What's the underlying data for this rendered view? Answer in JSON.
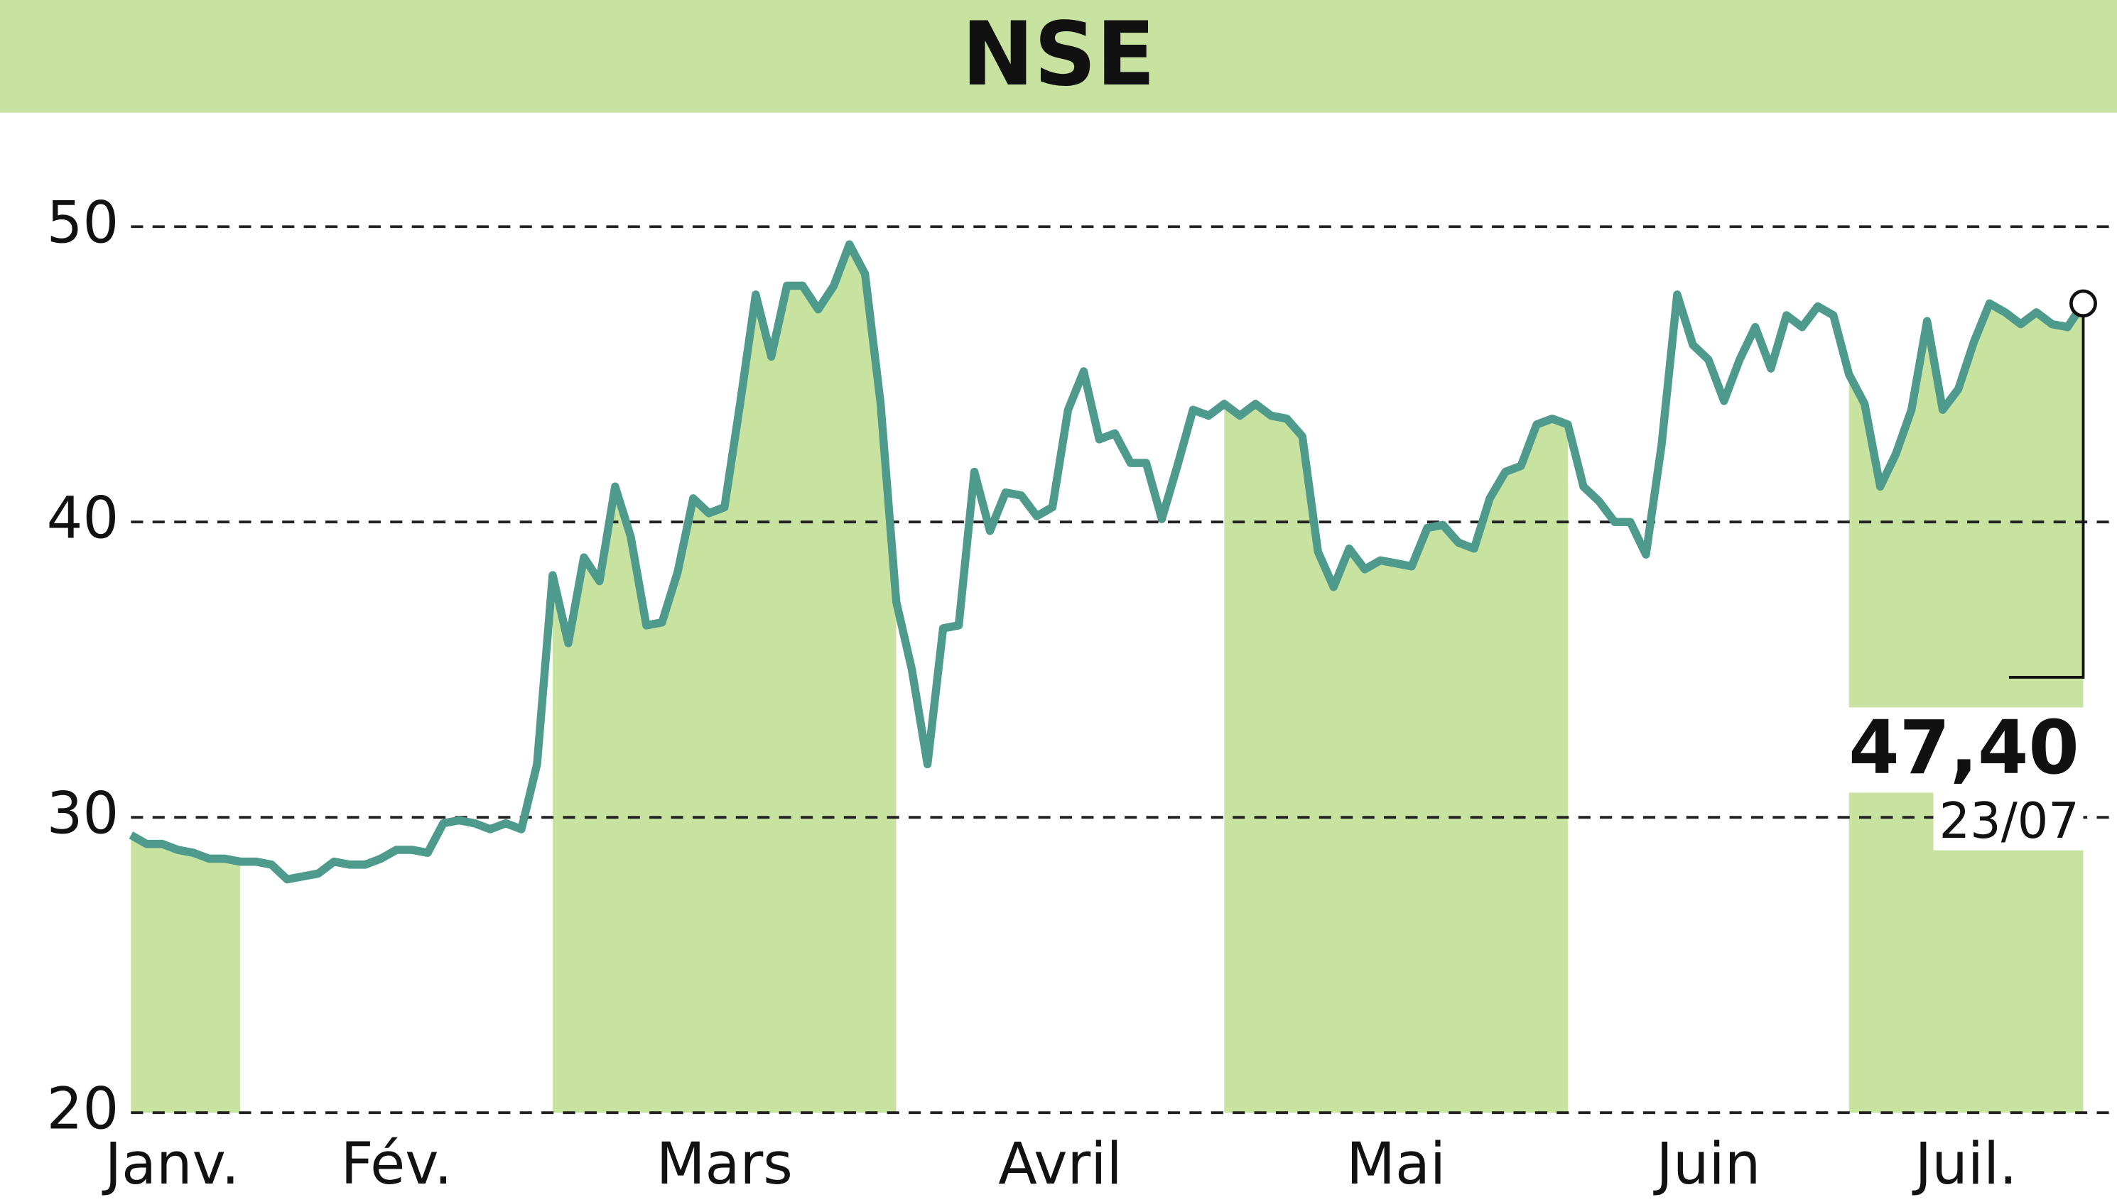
{
  "chart_data": {
    "type": "line",
    "title": "NSE",
    "ylim": [
      20,
      50
    ],
    "yticks": [
      20,
      30,
      40,
      50
    ],
    "grid": true,
    "color": "#4e9a8c",
    "band_color": "#c8e3a0",
    "categories": [
      "Janv.",
      null,
      null,
      null,
      null,
      null,
      null,
      "Fév.",
      null,
      null,
      null,
      null,
      null,
      null,
      null,
      null,
      null,
      null,
      null,
      null,
      null,
      null,
      null,
      null,
      null,
      null,
      null,
      "Mars",
      null,
      null,
      null,
      null,
      null,
      null,
      null,
      null,
      null,
      null,
      null,
      null,
      null,
      null,
      null,
      null,
      null,
      null,
      null,
      null,
      null,
      "Avril",
      null,
      null,
      null,
      null,
      null,
      null,
      null,
      null,
      null,
      null,
      null,
      null,
      null,
      null,
      null,
      null,
      null,
      null,
      null,
      null,
      "Mai",
      null,
      null,
      null,
      null,
      null,
      null,
      null,
      null,
      null,
      null,
      null,
      null,
      null,
      null,
      null,
      null,
      null,
      null,
      null,
      null,
      null,
      "Juin",
      null,
      null,
      null,
      null,
      null,
      null,
      null,
      null,
      null,
      null,
      null,
      null,
      null,
      null,
      null,
      null,
      null,
      "Juil.",
      null,
      null,
      null,
      null,
      null,
      null,
      null,
      null,
      null,
      null,
      null,
      null,
      null,
      null,
      null
    ],
    "values": [
      29.4,
      29.1,
      29.1,
      28.9,
      28.8,
      28.6,
      28.6,
      28.5,
      28.5,
      28.4,
      27.9,
      28.0,
      28.1,
      28.5,
      28.4,
      28.4,
      28.6,
      28.9,
      28.9,
      28.8,
      29.8,
      29.9,
      29.8,
      29.6,
      29.8,
      29.6,
      31.8,
      38.2,
      35.9,
      38.8,
      38.0,
      41.2,
      39.5,
      36.5,
      36.6,
      38.3,
      40.8,
      40.3,
      40.5,
      44.0,
      47.7,
      45.6,
      48.0,
      48.0,
      47.2,
      48.0,
      49.4,
      48.4,
      44.0,
      37.3,
      35.0,
      31.8,
      36.4,
      36.5,
      41.7,
      39.7,
      41.0,
      40.9,
      40.2,
      40.5,
      43.8,
      45.1,
      42.8,
      43.0,
      42.0,
      42.0,
      40.1,
      41.9,
      43.8,
      43.6,
      44.0,
      43.6,
      44.0,
      43.6,
      43.5,
      42.9,
      39.0,
      37.8,
      39.1,
      38.4,
      38.7,
      38.6,
      38.5,
      39.8,
      39.9,
      39.3,
      39.1,
      40.8,
      41.7,
      41.9,
      43.3,
      43.5,
      43.3,
      41.2,
      40.7,
      40.0,
      40.0,
      38.9,
      42.6,
      47.7,
      46.0,
      45.5,
      44.1,
      45.5,
      46.6,
      45.2,
      47.0,
      46.6,
      47.3,
      47.0,
      45.0,
      44.0,
      41.2,
      42.3,
      43.8,
      46.8,
      43.8,
      44.5,
      46.1,
      47.4,
      47.1,
      46.7,
      47.1,
      46.7,
      46.6,
      47.4
    ],
    "last_value_label": "47,40",
    "last_date": "23/07"
  }
}
